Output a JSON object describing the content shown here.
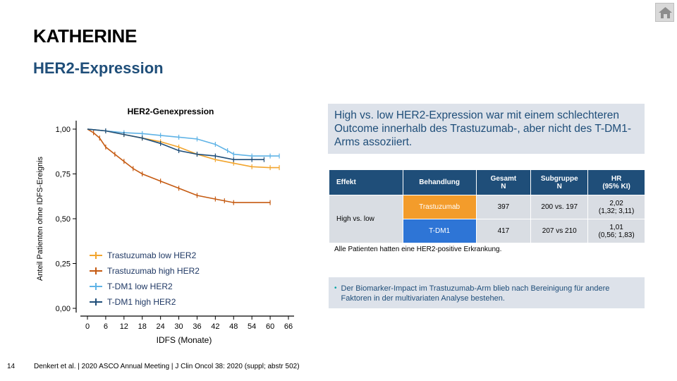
{
  "title": "KATHERINE",
  "subtitle": "HER2-Expression",
  "nav": {
    "home_icon": "home-icon"
  },
  "chart_data": {
    "type": "line",
    "title": "HER2-Genexpression",
    "xlabel": "IDFS (Monate)",
    "ylabel": "Anteil Patienten ohne IDFS-Ereignis",
    "x_ticks": [
      "0",
      "6",
      "12",
      "18",
      "24",
      "30",
      "36",
      "42",
      "48",
      "54",
      "60",
      "66"
    ],
    "y_ticks": [
      "0,00",
      "0,25",
      "0,50",
      "0,75",
      "1,00"
    ],
    "xlim": [
      0,
      66
    ],
    "ylim": [
      0,
      1
    ],
    "legend_placement": "bottom-left",
    "series": [
      {
        "name": "Trastuzumab low HER2",
        "color": "#f2a52e",
        "points": [
          [
            0,
            1
          ],
          [
            6,
            0.99
          ],
          [
            12,
            0.97
          ],
          [
            18,
            0.95
          ],
          [
            24,
            0.93
          ],
          [
            30,
            0.9
          ],
          [
            36,
            0.86
          ],
          [
            42,
            0.83
          ],
          [
            48,
            0.81
          ],
          [
            54,
            0.79
          ],
          [
            60,
            0.785
          ],
          [
            63,
            0.785
          ]
        ]
      },
      {
        "name": "Trastuzumab high HER2",
        "color": "#c55a11",
        "points": [
          [
            0,
            1
          ],
          [
            2,
            0.98
          ],
          [
            4,
            0.95
          ],
          [
            6,
            0.9
          ],
          [
            9,
            0.86
          ],
          [
            12,
            0.82
          ],
          [
            15,
            0.78
          ],
          [
            18,
            0.75
          ],
          [
            24,
            0.71
          ],
          [
            30,
            0.67
          ],
          [
            36,
            0.63
          ],
          [
            42,
            0.61
          ],
          [
            45,
            0.6
          ],
          [
            48,
            0.59
          ],
          [
            60,
            0.59
          ]
        ]
      },
      {
        "name": "T-DM1  low HER2",
        "color": "#5fb3e6",
        "points": [
          [
            0,
            1
          ],
          [
            6,
            0.99
          ],
          [
            12,
            0.98
          ],
          [
            18,
            0.975
          ],
          [
            24,
            0.965
          ],
          [
            30,
            0.955
          ],
          [
            36,
            0.945
          ],
          [
            42,
            0.915
          ],
          [
            46,
            0.88
          ],
          [
            48,
            0.86
          ],
          [
            54,
            0.85
          ],
          [
            60,
            0.85
          ],
          [
            63,
            0.85
          ]
        ]
      },
      {
        "name": "T-DM1  high HER2",
        "color": "#1f4e79",
        "points": [
          [
            0,
            1
          ],
          [
            6,
            0.99
          ],
          [
            12,
            0.97
          ],
          [
            18,
            0.95
          ],
          [
            24,
            0.92
          ],
          [
            30,
            0.88
          ],
          [
            36,
            0.86
          ],
          [
            42,
            0.85
          ],
          [
            48,
            0.83
          ],
          [
            54,
            0.83
          ],
          [
            58,
            0.83
          ]
        ]
      }
    ]
  },
  "summary": "High vs. low HER2-Expression war mit einem schlechteren Outcome innerhalb des Trastuzumab-, aber nicht des T-DM1-Arms assoziiert.",
  "table": {
    "headers": [
      "Effekt",
      "Behandlung",
      "Gesamt\nN",
      "Subgruppe\nN",
      "HR\n(95% KI)"
    ],
    "effect": "High vs. low",
    "rows": [
      {
        "treatment": "Trastuzumab",
        "total": "397",
        "subgroup": "200 vs. 197",
        "hr": "2,02",
        "ci": "(1,32; 3,11)"
      },
      {
        "treatment": "T-DM1",
        "total": "417",
        "subgroup": "207 vs 210",
        "hr": "1,01",
        "ci": "(0,56; 1,83)"
      }
    ],
    "footnote": "Alle Patienten hatten eine HER2-positive Erkrankung."
  },
  "bullet": "Der Biomarker-Impact im Trastuzumab-Arm blieb nach Bereinigung für andere Faktoren in der multivariaten Analyse bestehen.",
  "footer": {
    "page": "14",
    "citation": "Denkert et al. | 2020 ASCO Annual Meeting | J Clin Oncol 38: 2020 (suppl; abstr 502)"
  }
}
